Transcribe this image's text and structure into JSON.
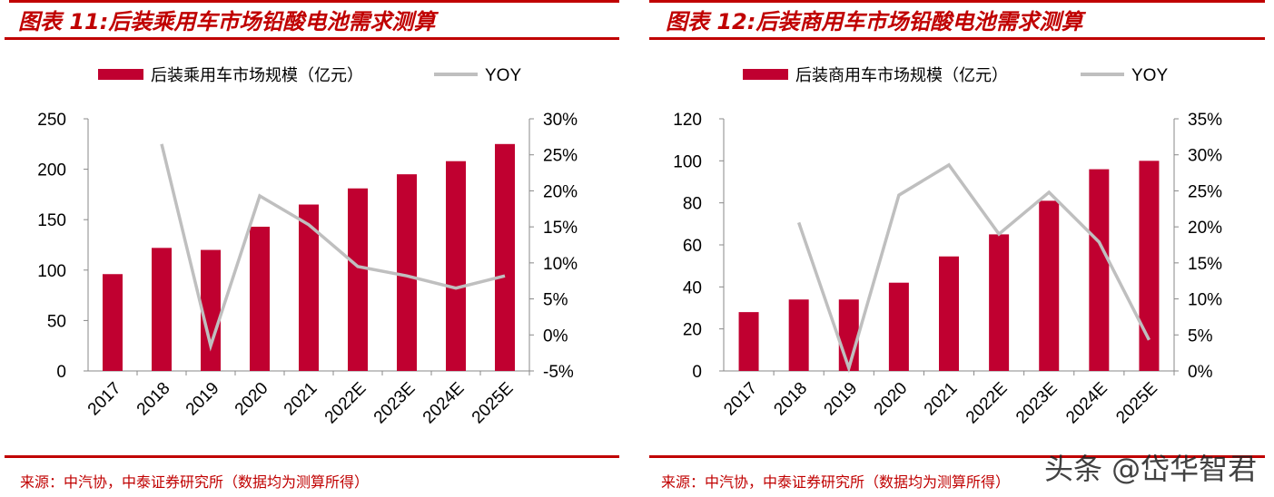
{
  "chart_data": [
    {
      "type": "bar+line",
      "title": "图表 11:后装乘用车市场铅酸电池需求测算",
      "categories": [
        "2017",
        "2018",
        "2019",
        "2020",
        "2021",
        "2022E",
        "2023E",
        "2024E",
        "2025E"
      ],
      "series": [
        {
          "name": "后装乘用车市场规模（亿元）",
          "type": "bar",
          "axis": "left",
          "values": [
            96,
            122,
            120,
            143,
            165,
            181,
            195,
            208,
            225
          ]
        },
        {
          "name": "YOY",
          "type": "line",
          "axis": "right",
          "values": [
            null,
            26.5,
            -1.5,
            19.3,
            15.3,
            9.5,
            8.2,
            6.5,
            8.2
          ]
        }
      ],
      "ylim": [
        0,
        250
      ],
      "yticks": [
        "0",
        "50",
        "100",
        "150",
        "200",
        "250"
      ],
      "y2lim": [
        -5,
        30
      ],
      "y2ticks": [
        "-5%",
        "0%",
        "5%",
        "10%",
        "15%",
        "20%",
        "25%",
        "30%"
      ],
      "legend": "top",
      "source": "来源：中汽协，中泰证券研究所（数据均为测算所得）"
    },
    {
      "type": "bar+line",
      "title": "图表 12:后装商用车市场铅酸电池需求测算",
      "categories": [
        "2017",
        "2018",
        "2019",
        "2020",
        "2021",
        "2022E",
        "2023E",
        "2024E",
        "2025E"
      ],
      "series": [
        {
          "name": "后装商用车市场规模（亿元）",
          "type": "bar",
          "axis": "left",
          "values": [
            28,
            34,
            34,
            42,
            54.5,
            65,
            81,
            96,
            100
          ]
        },
        {
          "name": "YOY",
          "type": "line",
          "axis": "right",
          "values": [
            null,
            20.6,
            0.4,
            24.4,
            28.6,
            19,
            24.8,
            17.9,
            4.3
          ]
        }
      ],
      "ylim": [
        0,
        120
      ],
      "yticks": [
        "0",
        "20",
        "40",
        "60",
        "80",
        "100",
        "120"
      ],
      "y2lim": [
        0,
        35
      ],
      "y2ticks": [
        "0%",
        "5%",
        "10%",
        "15%",
        "20%",
        "25%",
        "30%",
        "35%"
      ],
      "legend": "top",
      "source": "来源：中汽协，中泰证券研究所（数据均为测算所得）"
    }
  ],
  "colors": {
    "bar": "#c00030",
    "line": "#bfbfbf",
    "accent": "#c00000"
  },
  "watermark": "头条 @岱华智君"
}
